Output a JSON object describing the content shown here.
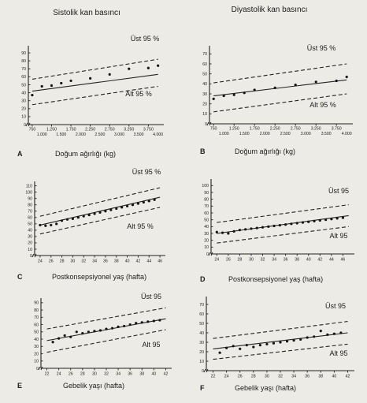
{
  "titles": {
    "left": "Sistolik kan basıncı",
    "right": "Diyastolik kan basıncı"
  },
  "chart_data": [
    {
      "id": "A",
      "type": "scatter",
      "letter": "A",
      "xlabel": "Doğum ağırlığı (kg)",
      "upper_label": "Üst 95 %",
      "lower_label": "Alt 95 %",
      "xlim": [
        650,
        4150
      ],
      "ylim": [
        0,
        95
      ],
      "yticks": [
        0,
        10,
        20,
        30,
        40,
        50,
        60,
        70,
        80,
        90
      ],
      "xticks_top": [
        "750",
        "1.250",
        "1.750",
        "2.250",
        "2.750",
        "3.250",
        "3.750"
      ],
      "xticks_top_values": [
        750,
        1250,
        1750,
        2250,
        2750,
        3250,
        3750
      ],
      "xticks_bottom": [
        "1.000",
        "1.500",
        "2.000",
        "2.500",
        "3.000",
        "3.500",
        "4.000"
      ],
      "xticks_bottom_values": [
        1000,
        1500,
        2000,
        2500,
        3000,
        3500,
        4000
      ],
      "regression": [
        [
          750,
          42
        ],
        [
          4000,
          63
        ]
      ],
      "upper_bound": [
        [
          750,
          57
        ],
        [
          4000,
          82
        ]
      ],
      "lower_bound": [
        [
          750,
          25
        ],
        [
          4000,
          48
        ]
      ],
      "points": [
        [
          750,
          37
        ],
        [
          1000,
          48
        ],
        [
          1250,
          49
        ],
        [
          1500,
          52
        ],
        [
          1750,
          55
        ],
        [
          2250,
          58
        ],
        [
          2750,
          63
        ],
        [
          3250,
          70
        ],
        [
          3750,
          71
        ],
        [
          4000,
          74
        ]
      ]
    },
    {
      "id": "B",
      "type": "scatter",
      "letter": "B",
      "xlabel": "Doğum ağırlığı (kg)",
      "upper_label": "Üst 95 %",
      "lower_label": "Alt 95 %",
      "xlim": [
        650,
        4150
      ],
      "ylim": [
        0,
        75
      ],
      "yticks": [
        0,
        10,
        20,
        30,
        40,
        50,
        60,
        70
      ],
      "xticks_top": [
        "750",
        "1.250",
        "1.750",
        "2.250",
        "2.750",
        "3.250",
        "3.750"
      ],
      "xticks_top_values": [
        750,
        1250,
        1750,
        2250,
        2750,
        3250,
        3750
      ],
      "xticks_bottom": [
        "1.000",
        "1.500",
        "2.000",
        "2.500",
        "3.000",
        "3.500",
        "4.000"
      ],
      "xticks_bottom_values": [
        1000,
        1500,
        2000,
        2500,
        3000,
        3500,
        4000
      ],
      "regression": [
        [
          750,
          28
        ],
        [
          4000,
          44
        ]
      ],
      "upper_bound": [
        [
          750,
          41
        ],
        [
          4000,
          60
        ]
      ],
      "lower_bound": [
        [
          750,
          12
        ],
        [
          4000,
          30
        ]
      ],
      "points": [
        [
          750,
          25
        ],
        [
          1000,
          28
        ],
        [
          1250,
          29
        ],
        [
          1500,
          31
        ],
        [
          1750,
          34
        ],
        [
          2250,
          36
        ],
        [
          2750,
          39
        ],
        [
          3250,
          42
        ],
        [
          3750,
          43
        ],
        [
          4000,
          47
        ]
      ]
    },
    {
      "id": "C",
      "type": "scatter",
      "letter": "C",
      "xlabel": "Postkonsepsiyonel yaş (hafta)",
      "upper_label": "Üst 95 %",
      "lower_label": "Alt 95 %",
      "xlim": [
        23,
        47
      ],
      "ylim": [
        0,
        112
      ],
      "yticks": [
        0,
        10,
        20,
        30,
        40,
        50,
        60,
        70,
        80,
        90,
        100,
        110
      ],
      "xticks": [
        24,
        26,
        28,
        30,
        32,
        34,
        36,
        38,
        40,
        42,
        44,
        46
      ],
      "regression": [
        [
          24,
          48
        ],
        [
          46,
          92
        ]
      ],
      "upper_bound": [
        [
          24,
          62
        ],
        [
          46,
          107
        ]
      ],
      "lower_bound": [
        [
          24,
          34
        ],
        [
          46,
          76
        ]
      ],
      "points": [
        [
          24,
          48
        ],
        [
          25,
          47
        ],
        [
          26,
          48
        ],
        [
          27,
          50
        ],
        [
          28,
          55
        ],
        [
          29,
          57
        ],
        [
          30,
          58
        ],
        [
          31,
          60
        ],
        [
          32,
          62
        ],
        [
          33,
          64
        ],
        [
          34,
          66
        ],
        [
          35,
          68
        ],
        [
          36,
          70
        ],
        [
          37,
          72
        ],
        [
          38,
          74
        ],
        [
          39,
          76
        ],
        [
          40,
          78
        ],
        [
          41,
          80
        ],
        [
          42,
          82
        ],
        [
          43,
          84
        ],
        [
          44,
          86
        ],
        [
          45,
          88
        ]
      ]
    },
    {
      "id": "D",
      "type": "scatter",
      "letter": "D",
      "xlabel": "Postkonsepsiyonel yaş (hafta)",
      "upper_label": "Üst 95",
      "lower_label": "Alt 95",
      "xlim": [
        23,
        48
      ],
      "ylim": [
        0,
        105
      ],
      "yticks": [
        0,
        10,
        20,
        30,
        40,
        50,
        60,
        70,
        80,
        90,
        100
      ],
      "xticks": [
        24,
        26,
        28,
        30,
        32,
        34,
        36,
        38,
        40,
        42,
        44,
        46
      ],
      "regression": [
        [
          24,
          30
        ],
        [
          47,
          56
        ]
      ],
      "upper_bound": [
        [
          24,
          46
        ],
        [
          47,
          72
        ]
      ],
      "lower_bound": [
        [
          24,
          16
        ],
        [
          47,
          40
        ]
      ],
      "points": [
        [
          24,
          32
        ],
        [
          25,
          31
        ],
        [
          26,
          30
        ],
        [
          27,
          33
        ],
        [
          28,
          35
        ],
        [
          29,
          36
        ],
        [
          30,
          37
        ],
        [
          31,
          38
        ],
        [
          32,
          39
        ],
        [
          33,
          40
        ],
        [
          34,
          41
        ],
        [
          35,
          42
        ],
        [
          36,
          43
        ],
        [
          37,
          44
        ],
        [
          38,
          45
        ],
        [
          39,
          46
        ],
        [
          40,
          47
        ],
        [
          41,
          48
        ],
        [
          42,
          49
        ],
        [
          43,
          50
        ],
        [
          44,
          51
        ],
        [
          45,
          52
        ],
        [
          46,
          53
        ]
      ]
    },
    {
      "id": "E",
      "type": "scatter",
      "letter": "E",
      "xlabel": "Gebelik yaşı (hafta)",
      "upper_label": "Üst 95",
      "lower_label": "Alt 95",
      "xlim": [
        21,
        43
      ],
      "ylim": [
        0,
        92
      ],
      "yticks": [
        0,
        10,
        20,
        30,
        40,
        50,
        60,
        70,
        80,
        90
      ],
      "xticks": [
        22,
        24,
        26,
        28,
        30,
        32,
        34,
        36,
        38,
        40,
        42
      ],
      "regression": [
        [
          22,
          38
        ],
        [
          42,
          68
        ]
      ],
      "upper_bound": [
        [
          22,
          54
        ],
        [
          42,
          83
        ]
      ],
      "lower_bound": [
        [
          22,
          22
        ],
        [
          42,
          53
        ]
      ],
      "points": [
        [
          23,
          36
        ],
        [
          24,
          41
        ],
        [
          25,
          45
        ],
        [
          26,
          43
        ],
        [
          27,
          50
        ],
        [
          28,
          48
        ],
        [
          29,
          50
        ],
        [
          30,
          51
        ],
        [
          31,
          52
        ],
        [
          32,
          54
        ],
        [
          33,
          55
        ],
        [
          34,
          57
        ],
        [
          35,
          58
        ],
        [
          36,
          60
        ],
        [
          37,
          62
        ],
        [
          38,
          63
        ],
        [
          39,
          64
        ],
        [
          40,
          65
        ],
        [
          41,
          66
        ]
      ]
    },
    {
      "id": "F",
      "type": "scatter",
      "letter": "F",
      "xlabel": "Gebelik yaşı (hafta)",
      "upper_label": "Üst 95",
      "lower_label": "Alt 95",
      "xlim": [
        21,
        43
      ],
      "ylim": [
        0,
        75
      ],
      "yticks": [
        0,
        10,
        20,
        30,
        40,
        50,
        60,
        70
      ],
      "xticks": [
        22,
        24,
        26,
        28,
        30,
        32,
        34,
        36,
        38,
        40,
        42
      ],
      "regression": [
        [
          22,
          23
        ],
        [
          42,
          40
        ]
      ],
      "upper_bound": [
        [
          22,
          34
        ],
        [
          42,
          52
        ]
      ],
      "lower_bound": [
        [
          22,
          12
        ],
        [
          42,
          28
        ]
      ],
      "points": [
        [
          23,
          19
        ],
        [
          24,
          24
        ],
        [
          25,
          26
        ],
        [
          26,
          23
        ],
        [
          27,
          27
        ],
        [
          28,
          25
        ],
        [
          29,
          27
        ],
        [
          30,
          28
        ],
        [
          31,
          29
        ],
        [
          32,
          30
        ],
        [
          33,
          31
        ],
        [
          34,
          32
        ],
        [
          35,
          33
        ],
        [
          36,
          35
        ],
        [
          37,
          36
        ],
        [
          38,
          42
        ],
        [
          39,
          38
        ],
        [
          40,
          39
        ],
        [
          41,
          40
        ]
      ]
    }
  ]
}
